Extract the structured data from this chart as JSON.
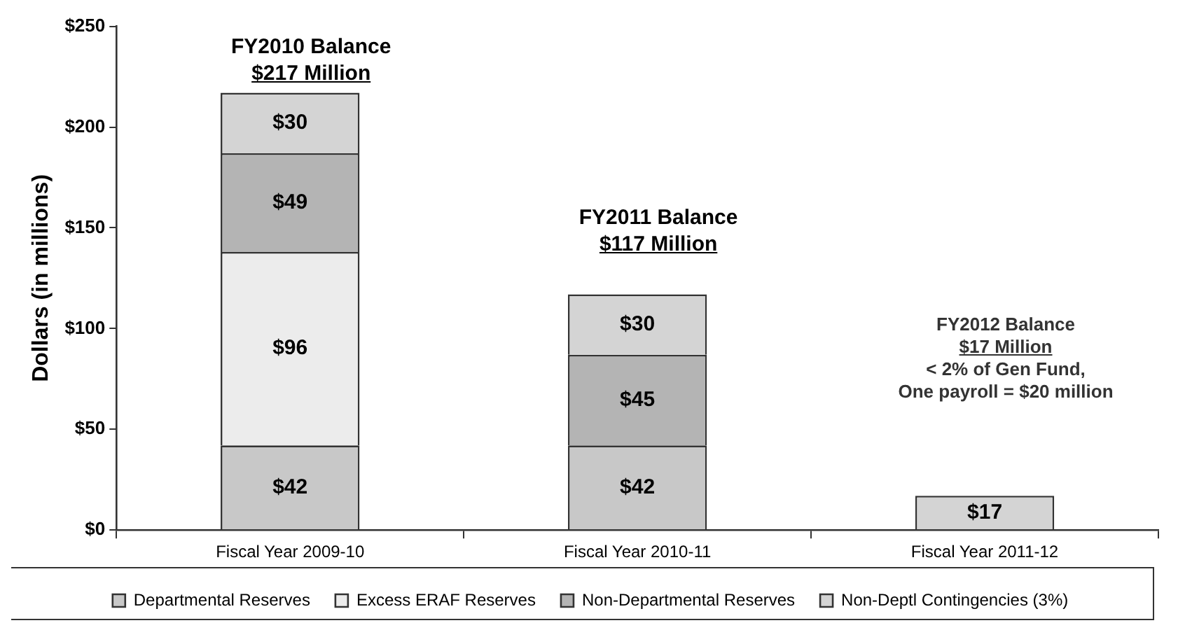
{
  "chart_data": {
    "type": "bar",
    "stacked": true,
    "ylabel": "Dollars (in millions)",
    "categories": [
      "Fiscal Year 2009-10",
      "Fiscal Year 2010-11",
      "Fiscal Year 2011-12"
    ],
    "series": [
      {
        "name": "Departmental Reserves",
        "color": "#c8c8c8",
        "values": [
          42,
          42,
          null
        ],
        "value_labels": [
          "$42",
          "$42",
          null
        ]
      },
      {
        "name": "Excess ERAF Reserves",
        "color": "#ececec",
        "values": [
          96,
          null,
          null
        ],
        "value_labels": [
          "$96",
          null,
          null
        ]
      },
      {
        "name": "Non-Departmental Reserves",
        "color": "#b4b4b4",
        "values": [
          49,
          45,
          null
        ],
        "value_labels": [
          "$49",
          "$45",
          null
        ]
      },
      {
        "name": "Non-Deptl Contingencies (3%)",
        "color": "#d4d4d4",
        "values": [
          30,
          30,
          17
        ],
        "value_labels": [
          "$30",
          "$30",
          "$17"
        ]
      }
    ],
    "ylim": [
      0,
      250
    ],
    "yticks": [
      {
        "value": 0,
        "label": "$0"
      },
      {
        "value": 50,
        "label": "$50"
      },
      {
        "value": 100,
        "label": "$100"
      },
      {
        "value": 150,
        "label": "$150"
      },
      {
        "value": 200,
        "label": "$200"
      },
      {
        "value": 250,
        "label": "$250"
      }
    ],
    "grid": false,
    "legend": "bottom",
    "annotations": [
      "FY2010 Balance\n$217 Million",
      "FY2011 Balance\n$117 Million",
      "FY2012 Balance\n$17 Million\n< 2% of Gen Fund,\nOne payroll = $20 million"
    ]
  }
}
